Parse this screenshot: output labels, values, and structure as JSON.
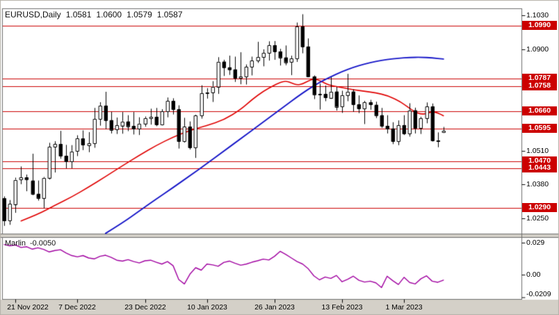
{
  "header": {
    "title": "EURUSD,Daily",
    "open": "1.0581",
    "high": "1.0600",
    "low": "1.0579",
    "close": "1.0587"
  },
  "colors": {
    "background": "#ffffff",
    "frame_gray": "#d4d0c8",
    "border_dark": "#6e6e6e",
    "level_red": "#cc0000",
    "ma_red": "#e00000",
    "ma_blue": "#1414c8",
    "indicator_purple": "#a000a0",
    "candle_outline": "#000000",
    "bull_fill": "#ffffff",
    "bear_fill": "#000000",
    "badge_text": "#ffffff",
    "text": "#000000"
  },
  "chart_data": {
    "type": "candlestick",
    "symbol": "EURUSD",
    "timeframe": "Daily",
    "grid": false,
    "price_axis": {
      "ylim": [
        1.0191,
        1.1054
      ],
      "labels": [
        {
          "label": "1.1030",
          "value": 1.103
        },
        {
          "label": "1.0900",
          "value": 1.09
        },
        {
          "label": "1.0510",
          "value": 1.051
        },
        {
          "label": "1.0380",
          "value": 1.038
        },
        {
          "label": "1.0250",
          "value": 1.025
        }
      ]
    },
    "levels": [
      {
        "label": "1.0990",
        "value": 1.099
      },
      {
        "label": "1.0787",
        "value": 1.0787
      },
      {
        "label": "1.0758",
        "value": 1.0758
      },
      {
        "label": "1.0660",
        "value": 1.066
      },
      {
        "label": "1.0595",
        "value": 1.0595
      },
      {
        "label": "1.0470",
        "value": 1.047
      },
      {
        "label": "1.0443",
        "value": 1.0443
      },
      {
        "label": "1.0290",
        "value": 1.029
      }
    ],
    "x_axis": {
      "ticks": [
        {
          "index": 2,
          "label": "21 Nov 2022"
        },
        {
          "index": 13,
          "label": "7 Dec 2022"
        },
        {
          "index": 25,
          "label": "23 Dec 2022"
        },
        {
          "index": 36,
          "label": "10 Jan 2023"
        },
        {
          "index": 48,
          "label": "26 Jan 2023"
        },
        {
          "index": 60,
          "label": "13 Feb 2023"
        },
        {
          "index": 71,
          "label": "1 Mar 2023"
        }
      ]
    },
    "candles": [
      [
        1.0326,
        1.0333,
        1.0222,
        1.024
      ],
      [
        1.024,
        1.0319,
        1.0226,
        1.0305
      ],
      [
        1.0305,
        1.0405,
        1.0272,
        1.0398
      ],
      [
        1.0398,
        1.0448,
        1.0382,
        1.0407
      ],
      [
        1.0407,
        1.0417,
        1.0355,
        1.04
      ],
      [
        1.0395,
        1.0497,
        1.034,
        1.0344
      ],
      [
        1.0344,
        1.0394,
        1.0319,
        1.0328
      ],
      [
        1.0328,
        1.0408,
        1.029,
        1.0406
      ],
      [
        1.0406,
        1.0539,
        1.04,
        1.0525
      ],
      [
        1.0525,
        1.0545,
        1.0427,
        1.0535
      ],
      [
        1.0535,
        1.0585,
        1.048,
        1.049
      ],
      [
        1.049,
        1.0531,
        1.0443,
        1.0469
      ],
      [
        1.0469,
        1.053,
        1.0443,
        1.0507
      ],
      [
        1.0507,
        1.0568,
        1.049,
        1.0556
      ],
      [
        1.0556,
        1.0587,
        1.0513,
        1.0531
      ],
      [
        1.0531,
        1.058,
        1.0505,
        1.0538
      ],
      [
        1.0538,
        1.0673,
        1.0522,
        1.0632
      ],
      [
        1.0632,
        1.0695,
        1.0607,
        1.0683
      ],
      [
        1.0683,
        1.0735,
        1.0594,
        1.0627
      ],
      [
        1.0627,
        1.0658,
        1.0577,
        1.059
      ],
      [
        1.059,
        1.0636,
        1.0575,
        1.0607
      ],
      [
        1.0607,
        1.0657,
        1.0576,
        1.0622
      ],
      [
        1.0622,
        1.0645,
        1.0586,
        1.0604
      ],
      [
        1.0604,
        1.0657,
        1.0573,
        1.0594
      ],
      [
        1.0594,
        1.0637,
        1.0571,
        1.0614
      ],
      [
        1.0614,
        1.064,
        1.0603,
        1.0635
      ],
      [
        1.0635,
        1.067,
        1.0611,
        1.064
      ],
      [
        1.064,
        1.0673,
        1.0605,
        1.061
      ],
      [
        1.061,
        1.0668,
        1.0608,
        1.066
      ],
      [
        1.066,
        1.0713,
        1.0639,
        1.07
      ],
      [
        1.07,
        1.071,
        1.065,
        1.0668
      ],
      [
        1.0668,
        1.0683,
        1.0519,
        1.0546
      ],
      [
        1.0546,
        1.0635,
        1.0542,
        1.0602
      ],
      [
        1.0602,
        1.0621,
        1.0515,
        1.0521
      ],
      [
        1.0521,
        1.0647,
        1.0483,
        1.0644
      ],
      [
        1.0644,
        1.076,
        1.0634,
        1.073
      ],
      [
        1.073,
        1.0749,
        1.0711,
        1.0734
      ],
      [
        1.0734,
        1.0776,
        1.0698,
        1.0756
      ],
      [
        1.0756,
        1.0868,
        1.0729,
        1.0852
      ],
      [
        1.0852,
        1.0858,
        1.0798,
        1.083
      ],
      [
        1.083,
        1.0874,
        1.0802,
        1.0822
      ],
      [
        1.0822,
        1.087,
        1.0775,
        1.0789
      ],
      [
        1.0789,
        1.0887,
        1.0766,
        1.0794
      ],
      [
        1.0794,
        1.084,
        1.0765,
        1.0832
      ],
      [
        1.0832,
        1.087,
        1.08,
        1.0856
      ],
      [
        1.0856,
        1.0927,
        1.0848,
        1.087
      ],
      [
        1.087,
        1.0898,
        1.0835,
        1.0886
      ],
      [
        1.0886,
        1.0929,
        1.0857,
        1.0915
      ],
      [
        1.0915,
        1.093,
        1.086,
        1.0891
      ],
      [
        1.0891,
        1.09,
        1.0838,
        1.0868
      ],
      [
        1.0868,
        1.0913,
        1.0839,
        1.085
      ],
      [
        1.085,
        1.0874,
        1.0801,
        1.0863
      ],
      [
        1.0863,
        1.1001,
        1.0852,
        1.0987
      ],
      [
        1.0987,
        1.1033,
        1.0885,
        1.091
      ],
      [
        1.091,
        1.094,
        1.0793,
        1.0795
      ],
      [
        1.0795,
        1.0798,
        1.0709,
        1.0726
      ],
      [
        1.0726,
        1.0766,
        1.0669,
        1.0727
      ],
      [
        1.0727,
        1.0759,
        1.0701,
        1.0713
      ],
      [
        1.0713,
        1.0791,
        1.071,
        1.0737
      ],
      [
        1.0737,
        1.0754,
        1.0665,
        1.0679
      ],
      [
        1.0679,
        1.0739,
        1.0656,
        1.0723
      ],
      [
        1.0723,
        1.0804,
        1.0701,
        1.0737
      ],
      [
        1.0737,
        1.0744,
        1.066,
        1.0688
      ],
      [
        1.0688,
        1.0721,
        1.0655,
        1.0672
      ],
      [
        1.0672,
        1.07,
        1.0613,
        1.0695
      ],
      [
        1.0695,
        1.0704,
        1.0668,
        1.0686
      ],
      [
        1.0686,
        1.0697,
        1.0636,
        1.0646
      ],
      [
        1.0646,
        1.0673,
        1.0598,
        1.0605
      ],
      [
        1.0605,
        1.0645,
        1.0577,
        1.0595
      ],
      [
        1.0595,
        1.0618,
        1.0536,
        1.0546
      ],
      [
        1.0546,
        1.0625,
        1.0532,
        1.0608
      ],
      [
        1.0608,
        1.0645,
        1.0571,
        1.0576
      ],
      [
        1.0576,
        1.0691,
        1.0565,
        1.0665
      ],
      [
        1.0665,
        1.0674,
        1.0577,
        1.0597
      ],
      [
        1.0597,
        1.0639,
        1.0575,
        1.0635
      ],
      [
        1.0635,
        1.0694,
        1.0616,
        1.068
      ],
      [
        1.068,
        1.069,
        1.0546,
        1.0549
      ],
      [
        1.0549,
        1.0579,
        1.0524,
        1.0545
      ],
      [
        1.0581,
        1.06,
        1.0579,
        1.0587
      ]
    ],
    "overlays": [
      {
        "name": "ma-fast-red",
        "color_key": "ma_red",
        "width": 1.6,
        "points": [
          [
            3,
            1.024
          ],
          [
            6,
            1.0265
          ],
          [
            9,
            1.03
          ],
          [
            12,
            1.0332
          ],
          [
            15,
            1.037
          ],
          [
            18,
            1.041
          ],
          [
            21,
            1.0452
          ],
          [
            24,
            1.0492
          ],
          [
            27,
            1.053
          ],
          [
            30,
            1.0562
          ],
          [
            33,
            1.0588
          ],
          [
            36,
            1.0606
          ],
          [
            39,
            1.0628
          ],
          [
            42,
            1.0668
          ],
          [
            44,
            1.0706
          ],
          [
            46,
            1.0738
          ],
          [
            48,
            1.0762
          ],
          [
            49,
            1.0772
          ],
          [
            50,
            1.0778
          ],
          [
            51,
            1.077
          ],
          [
            52,
            1.0762
          ],
          [
            53,
            1.0766
          ],
          [
            54,
            1.0778
          ],
          [
            55,
            1.0786
          ],
          [
            56,
            1.078
          ],
          [
            57,
            1.0768
          ],
          [
            58,
            1.076
          ],
          [
            60,
            1.0752
          ],
          [
            62,
            1.0744
          ],
          [
            64,
            1.0738
          ],
          [
            66,
            1.0732
          ],
          [
            68,
            1.0722
          ],
          [
            70,
            1.0702
          ],
          [
            71,
            1.0688
          ],
          [
            72,
            1.0672
          ],
          [
            73,
            1.0658
          ],
          [
            74,
            1.065
          ],
          [
            75,
            1.0652
          ],
          [
            76,
            1.066
          ],
          [
            77,
            1.0655
          ],
          [
            78,
            1.0644
          ]
        ]
      },
      {
        "name": "ma-slow-blue",
        "color_key": "ma_blue",
        "width": 1.9,
        "points": [
          [
            18,
            1.0192
          ],
          [
            21,
            1.0232
          ],
          [
            24,
            1.0278
          ],
          [
            27,
            1.0324
          ],
          [
            30,
            1.0368
          ],
          [
            33,
            1.0414
          ],
          [
            36,
            1.046
          ],
          [
            39,
            1.0508
          ],
          [
            42,
            1.0556
          ],
          [
            45,
            1.0604
          ],
          [
            48,
            1.0652
          ],
          [
            50,
            1.0684
          ],
          [
            52,
            1.0716
          ],
          [
            54,
            1.0746
          ],
          [
            56,
            1.0772
          ],
          [
            58,
            1.0794
          ],
          [
            60,
            1.0814
          ],
          [
            62,
            1.083
          ],
          [
            64,
            1.0843
          ],
          [
            66,
            1.0853
          ],
          [
            68,
            1.086
          ],
          [
            70,
            1.0865
          ],
          [
            72,
            1.0868
          ],
          [
            74,
            1.0869
          ],
          [
            76,
            1.0866
          ],
          [
            78,
            1.0862
          ]
        ]
      }
    ],
    "indicator": {
      "name": "Marlin",
      "current": "-0.0050",
      "ylim": [
        -0.0215,
        0.032
      ],
      "labels": [
        {
          "label": "0.029",
          "value": 0.029
        },
        {
          "label": "0.00",
          "value": 0
        },
        {
          "label": "-0.0209",
          "value": -0.0209
        }
      ],
      "values": [
        0.0272,
        0.026,
        0.0268,
        0.0245,
        0.0252,
        0.023,
        0.0242,
        0.0228,
        0.0205,
        0.0218,
        0.0225,
        0.0195,
        0.0172,
        0.016,
        0.0172,
        0.015,
        0.0142,
        0.0165,
        0.0175,
        0.0155,
        0.013,
        0.0122,
        0.0135,
        0.0118,
        0.0105,
        0.0125,
        0.013,
        0.0112,
        0.0095,
        0.0118,
        0.008,
        -0.0045,
        -0.0085,
        0.0005,
        0.0062,
        0.004,
        0.0095,
        0.0088,
        0.0075,
        0.011,
        0.0122,
        0.0102,
        0.0085,
        0.0095,
        0.0112,
        0.0125,
        0.014,
        0.0132,
        0.0165,
        0.021,
        0.0182,
        0.015,
        0.0118,
        0.0095,
        0.0052,
        -0.0012,
        -0.0048,
        -0.0022,
        -0.0035,
        -0.0008,
        -0.0065,
        -0.0042,
        -0.0015,
        -0.0052,
        -0.0068,
        -0.006,
        -0.0075,
        -0.0118,
        -0.0015,
        -0.0055,
        -0.009,
        -0.0025,
        -0.0072,
        -0.0085,
        -0.0038,
        -0.0012,
        -0.006,
        -0.007,
        -0.005
      ]
    }
  }
}
